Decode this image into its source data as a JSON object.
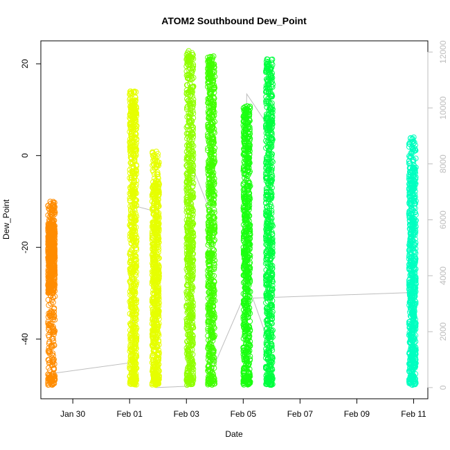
{
  "chart_data": {
    "type": "scatter",
    "title": "ATOM2 Southbound Dew_Point",
    "xlabel": "Date",
    "ylabel": "Dew_Point",
    "xlim": [
      "2024-01-28T21:00",
      "2024-02-11T12:00"
    ],
    "ylim": [
      -53,
      25
    ],
    "y2lim": [
      -400,
      12400
    ],
    "x_ticks": [
      {
        "date": "2024-01-30",
        "label": "Jan 30"
      },
      {
        "date": "2024-02-01",
        "label": "Feb 01"
      },
      {
        "date": "2024-02-03",
        "label": "Feb 03"
      },
      {
        "date": "2024-02-05",
        "label": "Feb 05"
      },
      {
        "date": "2024-02-07",
        "label": "Feb 07"
      },
      {
        "date": "2024-02-09",
        "label": "Feb 09"
      },
      {
        "date": "2024-02-11",
        "label": "Feb 11"
      }
    ],
    "y_ticks": [
      {
        "value": 20,
        "label": "20"
      },
      {
        "value": 0,
        "label": "0"
      },
      {
        "value": -20,
        "label": "-20"
      },
      {
        "value": -40,
        "label": "-40"
      }
    ],
    "y2_ticks": [
      {
        "value": 0,
        "label": "0"
      },
      {
        "value": 2000,
        "label": "2000"
      },
      {
        "value": 4000,
        "label": "4000"
      },
      {
        "value": 6000,
        "label": "6000"
      },
      {
        "value": 8000,
        "label": "8000"
      },
      {
        "value": 10000,
        "label": "10000"
      },
      {
        "value": 12000,
        "label": "12000"
      }
    ],
    "marker": "open-circle",
    "right_axis_color": "#bdbdbd",
    "profiles": [
      {
        "date": "2024-01-29T06:00",
        "dew_min": -50,
        "dew_max": -10,
        "dense_min": -30,
        "dense_max": -14,
        "color": "#ff8c00"
      },
      {
        "date": "2024-02-01T03:00",
        "dew_min": -50,
        "dew_max": 14,
        "dense_min": -50,
        "dense_max": 12,
        "color": "#e6ff00"
      },
      {
        "date": "2024-02-01T22:00",
        "dew_min": -50,
        "dew_max": 1,
        "dense_min": -50,
        "dense_max": -5,
        "color": "#e6ff00"
      },
      {
        "date": "2024-02-03T03:00",
        "dew_min": -50,
        "dew_max": 23,
        "dense_min": -50,
        "dense_max": 22,
        "color": "#90ff00"
      },
      {
        "date": "2024-02-03T21:00",
        "dew_min": -50,
        "dew_max": 22,
        "dense_min": -50,
        "dense_max": 21,
        "color": "#40ff00"
      },
      {
        "date": "2024-02-05T03:00",
        "dew_min": -50,
        "dew_max": 11,
        "dense_min": -50,
        "dense_max": 10,
        "color": "#1aff10"
      },
      {
        "date": "2024-02-05T22:00",
        "dew_min": -50,
        "dew_max": 21,
        "dense_min": -50,
        "dense_max": 20,
        "color": "#00ff40"
      },
      {
        "date": "2024-02-10T23:00",
        "dew_min": -50,
        "dew_max": 4,
        "dense_min": -50,
        "dense_max": -2,
        "color": "#00ffc0"
      }
    ],
    "altitude_trace": {
      "y_axis": "right",
      "color": "#bdbdbd",
      "points": [
        [
          "2024-01-29T06:00",
          500
        ],
        [
          "2024-02-01T03:00",
          900
        ],
        [
          "2024-02-01T04:00",
          6500
        ],
        [
          "2024-02-01T22:00",
          6300
        ],
        [
          "2024-02-01T22:30",
          0
        ],
        [
          "2024-02-03T03:00",
          50
        ],
        [
          "2024-02-03T04:00",
          8000
        ],
        [
          "2024-02-03T21:00",
          6200
        ],
        [
          "2024-02-03T21:30",
          600
        ],
        [
          "2024-02-05T00:00",
          3200
        ],
        [
          "2024-02-05T03:00",
          10500
        ],
        [
          "2024-02-05T22:00",
          9300
        ],
        [
          "2024-02-05T22:30",
          1500
        ],
        [
          "2024-02-05T08:00",
          3200
        ],
        [
          "2024-02-10T23:00",
          3400
        ]
      ]
    }
  }
}
